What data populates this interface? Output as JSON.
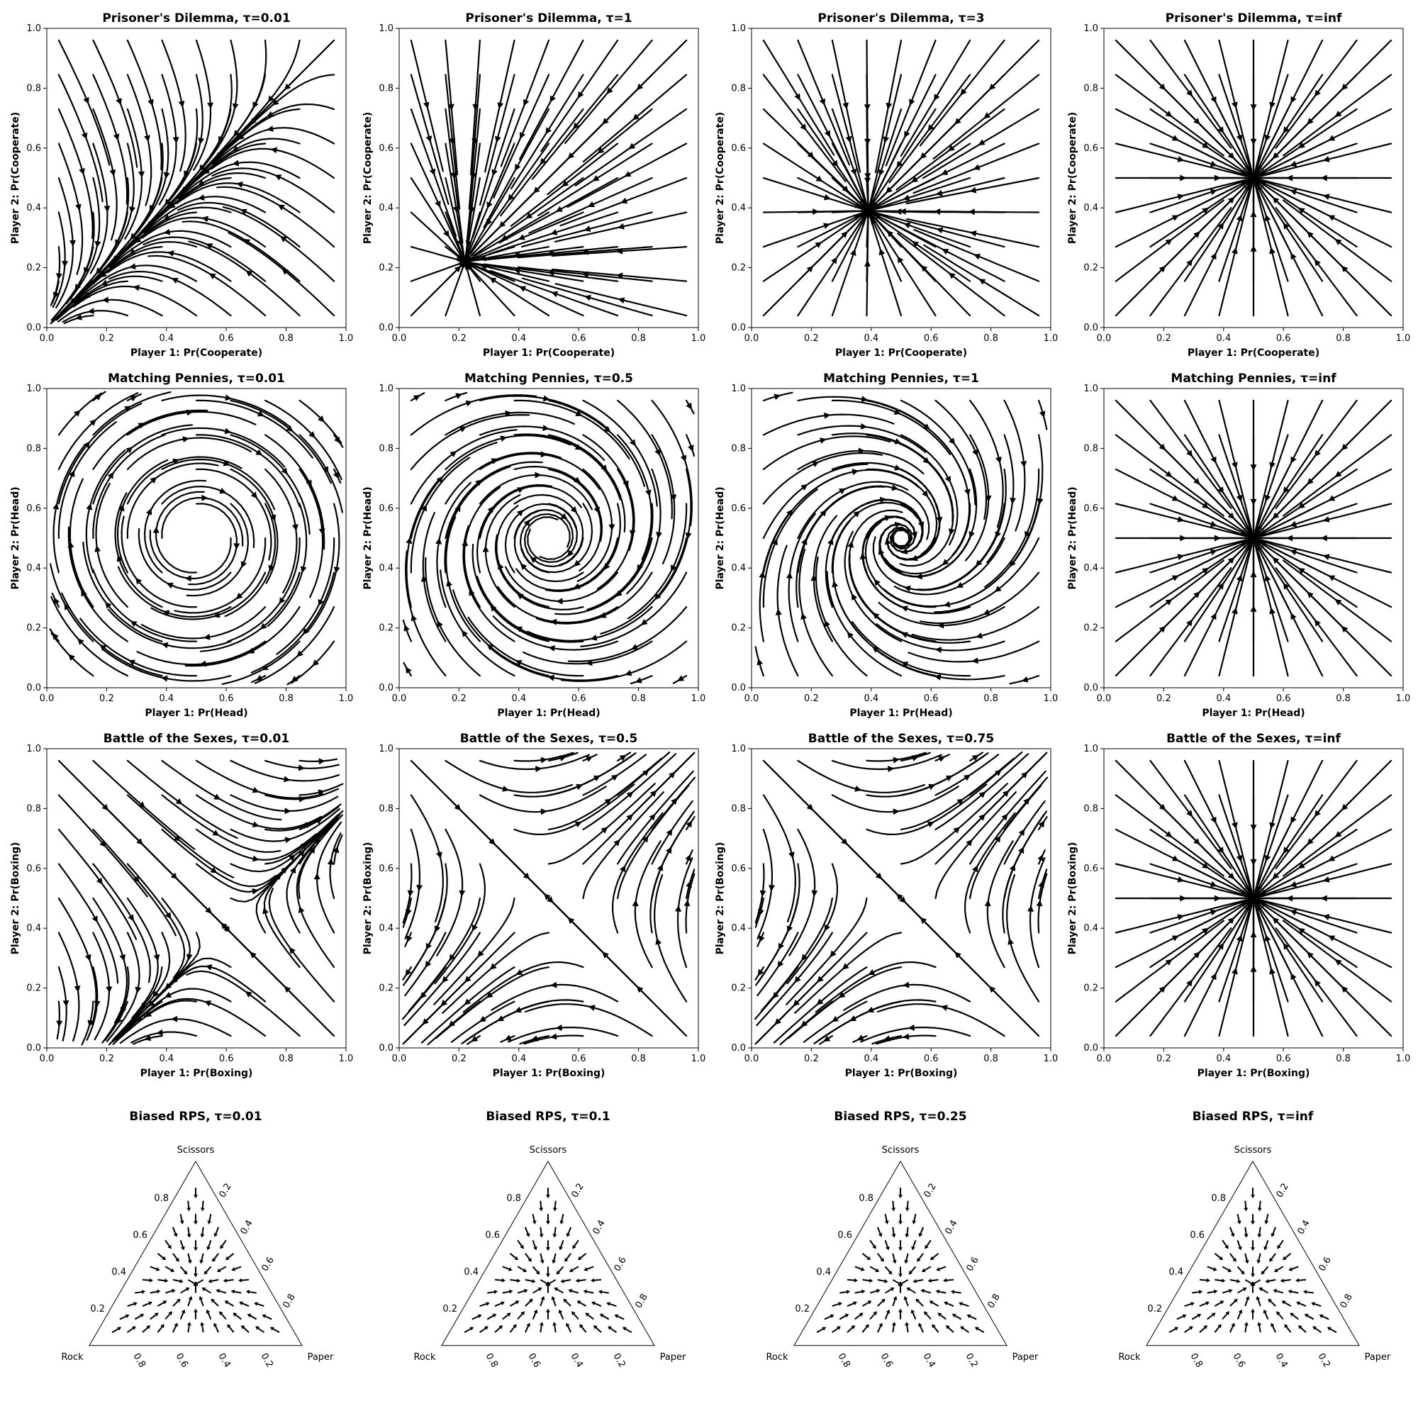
{
  "chart_data": [
    {
      "type": "streamplot",
      "game": "pd",
      "title": "Prisoner's Dilemma, τ=0.01",
      "xlabel": "Player 1: Pr(Cooperate)",
      "ylabel": "Player 2: Pr(Cooperate)",
      "xlim": [
        0,
        1
      ],
      "ylim": [
        0,
        1
      ],
      "ticks": [
        "0.0",
        "0.2",
        "0.4",
        "0.6",
        "0.8",
        "1.0"
      ],
      "tau": 0.01
    },
    {
      "type": "streamplot",
      "game": "pd",
      "title": "Prisoner's Dilemma, τ=1",
      "xlabel": "Player 1: Pr(Cooperate)",
      "ylabel": "Player 2: Pr(Cooperate)",
      "xlim": [
        0,
        1
      ],
      "ylim": [
        0,
        1
      ],
      "ticks": [
        "0.0",
        "0.2",
        "0.4",
        "0.6",
        "0.8",
        "1.0"
      ],
      "tau": 1,
      "fixed_point": [
        0.22,
        0.22
      ]
    },
    {
      "type": "streamplot",
      "game": "pd",
      "title": "Prisoner's Dilemma, τ=3",
      "xlabel": "Player 1: Pr(Cooperate)",
      "ylabel": "Player 2: Pr(Cooperate)",
      "xlim": [
        0,
        1
      ],
      "ylim": [
        0,
        1
      ],
      "ticks": [
        "0.0",
        "0.2",
        "0.4",
        "0.6",
        "0.8",
        "1.0"
      ],
      "tau": 3,
      "fixed_point": [
        0.39,
        0.39
      ]
    },
    {
      "type": "streamplot",
      "game": "pd",
      "title": "Prisoner's Dilemma, τ=inf",
      "xlabel": "Player 1: Pr(Cooperate)",
      "ylabel": "Player 2: Pr(Cooperate)",
      "xlim": [
        0,
        1
      ],
      "ylim": [
        0,
        1
      ],
      "ticks": [
        "0.0",
        "0.2",
        "0.4",
        "0.6",
        "0.8",
        "1.0"
      ],
      "tau": "inf",
      "fixed_point": [
        0.5,
        0.5
      ]
    },
    {
      "type": "streamplot",
      "game": "mp",
      "title": "Matching Pennies, τ=0.01",
      "xlabel": "Player 1: Pr(Head)",
      "ylabel": "Player 2: Pr(Head)",
      "xlim": [
        0,
        1
      ],
      "ylim": [
        0,
        1
      ],
      "ticks": [
        "0.0",
        "0.2",
        "0.4",
        "0.6",
        "0.8",
        "1.0"
      ],
      "tau": 0.01,
      "fixed_point": [
        0.5,
        0.5
      ]
    },
    {
      "type": "streamplot",
      "game": "mp",
      "title": "Matching Pennies, τ=0.5",
      "xlabel": "Player 1: Pr(Head)",
      "ylabel": "Player 2: Pr(Head)",
      "xlim": [
        0,
        1
      ],
      "ylim": [
        0,
        1
      ],
      "ticks": [
        "0.0",
        "0.2",
        "0.4",
        "0.6",
        "0.8",
        "1.0"
      ],
      "tau": 0.5,
      "fixed_point": [
        0.5,
        0.5
      ]
    },
    {
      "type": "streamplot",
      "game": "mp",
      "title": "Matching Pennies, τ=1",
      "xlabel": "Player 1: Pr(Head)",
      "ylabel": "Player 2: Pr(Head)",
      "xlim": [
        0,
        1
      ],
      "ylim": [
        0,
        1
      ],
      "ticks": [
        "0.0",
        "0.2",
        "0.4",
        "0.6",
        "0.8",
        "1.0"
      ],
      "tau": 1,
      "fixed_point": [
        0.5,
        0.5
      ]
    },
    {
      "type": "streamplot",
      "game": "mp",
      "title": "Matching Pennies, τ=inf",
      "xlabel": "Player 1: Pr(Head)",
      "ylabel": "Player 2: Pr(Head)",
      "xlim": [
        0,
        1
      ],
      "ylim": [
        0,
        1
      ],
      "ticks": [
        "0.0",
        "0.2",
        "0.4",
        "0.6",
        "0.8",
        "1.0"
      ],
      "tau": "inf",
      "fixed_point": [
        0.5,
        0.5
      ]
    },
    {
      "type": "streamplot",
      "game": "bos",
      "title": "Battle of the Sexes, τ=0.01",
      "xlabel": "Player 1: Pr(Boxing)",
      "ylabel": "Player 2: Pr(Boxing)",
      "xlim": [
        0,
        1
      ],
      "ylim": [
        0,
        1
      ],
      "ticks": [
        "0.0",
        "0.2",
        "0.4",
        "0.6",
        "0.8",
        "1.0"
      ],
      "tau": 0.01,
      "fixed_point": [
        0.6,
        0.4
      ]
    },
    {
      "type": "streamplot",
      "game": "bos",
      "title": "Battle of the Sexes, τ=0.5",
      "xlabel": "Player 1: Pr(Boxing)",
      "ylabel": "Player 2: Pr(Boxing)",
      "xlim": [
        0,
        1
      ],
      "ylim": [
        0,
        1
      ],
      "ticks": [
        "0.0",
        "0.2",
        "0.4",
        "0.6",
        "0.8",
        "1.0"
      ],
      "tau": 0.5
    },
    {
      "type": "streamplot",
      "game": "bos",
      "title": "Battle of the Sexes, τ=0.75",
      "xlabel": "Player 1: Pr(Boxing)",
      "ylabel": "Player 2: Pr(Boxing)",
      "xlim": [
        0,
        1
      ],
      "ylim": [
        0,
        1
      ],
      "ticks": [
        "0.0",
        "0.2",
        "0.4",
        "0.6",
        "0.8",
        "1.0"
      ],
      "tau": 0.75
    },
    {
      "type": "streamplot",
      "game": "bos",
      "title": "Battle of the Sexes, τ=inf",
      "xlabel": "Player 1: Pr(Boxing)",
      "ylabel": "Player 2: Pr(Boxing)",
      "xlim": [
        0,
        1
      ],
      "ylim": [
        0,
        1
      ],
      "ticks": [
        "0.0",
        "0.2",
        "0.4",
        "0.6",
        "0.8",
        "1.0"
      ],
      "tau": "inf",
      "fixed_point": [
        0.5,
        0.5
      ]
    },
    {
      "type": "ternary_quiver",
      "title": "Biased RPS, τ=0.01",
      "vertices": [
        "Rock",
        "Paper",
        "Scissors"
      ],
      "ticks": [
        "0.2",
        "0.4",
        "0.6",
        "0.8"
      ],
      "tau": 0.01
    },
    {
      "type": "ternary_quiver",
      "title": "Biased RPS, τ=0.1",
      "vertices": [
        "Rock",
        "Paper",
        "Scissors"
      ],
      "ticks": [
        "0.2",
        "0.4",
        "0.6",
        "0.8"
      ],
      "tau": 0.1
    },
    {
      "type": "ternary_quiver",
      "title": "Biased RPS, τ=0.25",
      "vertices": [
        "Rock",
        "Paper",
        "Scissors"
      ],
      "ticks": [
        "0.2",
        "0.4",
        "0.6",
        "0.8"
      ],
      "tau": 0.25
    },
    {
      "type": "ternary_quiver",
      "title": "Biased RPS, τ=inf",
      "vertices": [
        "Rock",
        "Paper",
        "Scissors"
      ],
      "ticks": [
        "0.2",
        "0.4",
        "0.6",
        "0.8"
      ],
      "tau": "inf"
    }
  ]
}
